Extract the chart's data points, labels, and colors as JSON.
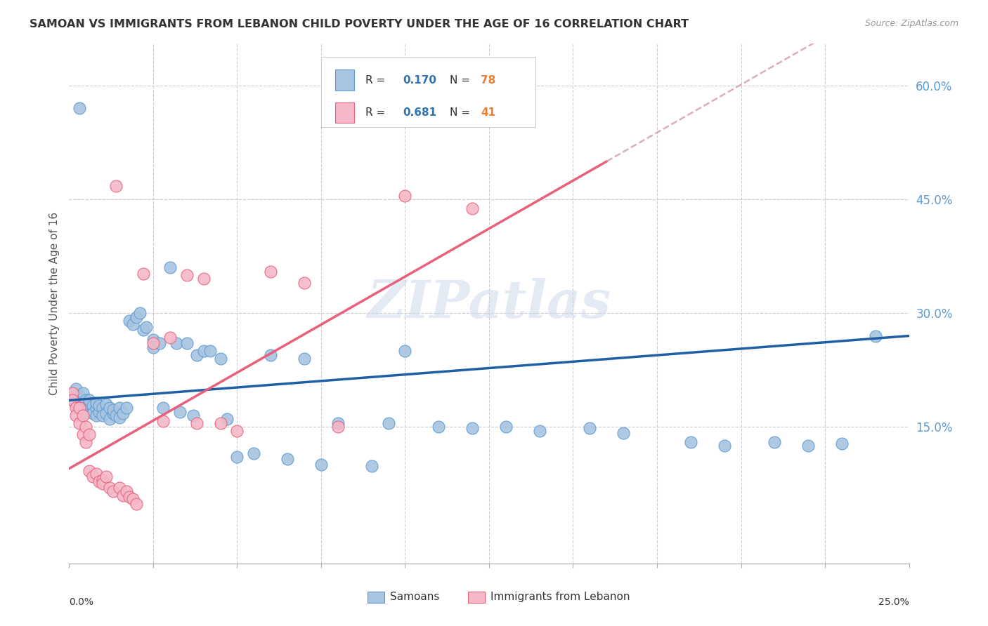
{
  "title": "SAMOAN VS IMMIGRANTS FROM LEBANON CHILD POVERTY UNDER THE AGE OF 16 CORRELATION CHART",
  "source": "Source: ZipAtlas.com",
  "ylabel": "Child Poverty Under the Age of 16",
  "right_yticks": [
    0.0,
    0.15,
    0.3,
    0.45,
    0.6
  ],
  "right_yticklabels": [
    "",
    "15.0%",
    "30.0%",
    "45.0%",
    "60.0%"
  ],
  "xmin": 0.0,
  "xmax": 0.25,
  "ymin": -0.03,
  "ymax": 0.655,
  "samoan_color": "#a8c4e0",
  "samoan_edge_color": "#5b9bd5",
  "lebanon_color": "#f4b8c8",
  "lebanon_edge_color": "#e8607a",
  "samoan_line_color": "#1f5fa6",
  "lebanon_line_color": "#e8607a",
  "lebanon_dash_color": "#d4a0b0",
  "legend_R_color": "#2e75b6",
  "legend_N_color": "#ed7d31",
  "watermark": "ZIPatlas",
  "samoans_x": [
    0.001,
    0.001,
    0.002,
    0.002,
    0.003,
    0.003,
    0.003,
    0.004,
    0.004,
    0.005,
    0.005,
    0.005,
    0.006,
    0.006,
    0.006,
    0.007,
    0.007,
    0.007,
    0.008,
    0.008,
    0.008,
    0.009,
    0.009,
    0.01,
    0.01,
    0.011,
    0.011,
    0.012,
    0.012,
    0.013,
    0.013,
    0.014,
    0.015,
    0.015,
    0.016,
    0.017,
    0.018,
    0.019,
    0.02,
    0.021,
    0.022,
    0.023,
    0.025,
    0.025,
    0.027,
    0.028,
    0.03,
    0.032,
    0.033,
    0.035,
    0.037,
    0.038,
    0.04,
    0.042,
    0.045,
    0.047,
    0.05,
    0.055,
    0.06,
    0.065,
    0.07,
    0.075,
    0.08,
    0.09,
    0.095,
    0.1,
    0.11,
    0.12,
    0.13,
    0.14,
    0.155,
    0.165,
    0.185,
    0.195,
    0.21,
    0.22,
    0.23,
    0.24
  ],
  "samoans_y": [
    0.185,
    0.195,
    0.18,
    0.2,
    0.175,
    0.19,
    0.57,
    0.18,
    0.195,
    0.175,
    0.185,
    0.17,
    0.18,
    0.175,
    0.185,
    0.172,
    0.178,
    0.168,
    0.175,
    0.182,
    0.165,
    0.17,
    0.178,
    0.175,
    0.165,
    0.18,
    0.168,
    0.175,
    0.16,
    0.168,
    0.172,
    0.165,
    0.175,
    0.162,
    0.168,
    0.175,
    0.29,
    0.285,
    0.295,
    0.3,
    0.278,
    0.282,
    0.265,
    0.255,
    0.26,
    0.175,
    0.36,
    0.26,
    0.17,
    0.26,
    0.165,
    0.245,
    0.25,
    0.25,
    0.24,
    0.16,
    0.11,
    0.115,
    0.245,
    0.108,
    0.24,
    0.1,
    0.155,
    0.098,
    0.155,
    0.25,
    0.15,
    0.148,
    0.15,
    0.145,
    0.148,
    0.142,
    0.13,
    0.125,
    0.13,
    0.125,
    0.128,
    0.27
  ],
  "lebanon_x": [
    0.001,
    0.001,
    0.002,
    0.002,
    0.003,
    0.003,
    0.004,
    0.004,
    0.005,
    0.005,
    0.006,
    0.006,
    0.007,
    0.008,
    0.009,
    0.01,
    0.01,
    0.011,
    0.012,
    0.013,
    0.014,
    0.015,
    0.016,
    0.017,
    0.018,
    0.019,
    0.02,
    0.022,
    0.025,
    0.028,
    0.03,
    0.035,
    0.038,
    0.04,
    0.045,
    0.05,
    0.06,
    0.07,
    0.08,
    0.1,
    0.12
  ],
  "lebanon_y": [
    0.195,
    0.185,
    0.175,
    0.165,
    0.175,
    0.155,
    0.165,
    0.14,
    0.15,
    0.13,
    0.14,
    0.092,
    0.085,
    0.088,
    0.078,
    0.08,
    0.075,
    0.085,
    0.07,
    0.065,
    0.468,
    0.07,
    0.06,
    0.065,
    0.058,
    0.055,
    0.048,
    0.352,
    0.26,
    0.158,
    0.268,
    0.35,
    0.155,
    0.345,
    0.155,
    0.145,
    0.355,
    0.34,
    0.15,
    0.455,
    0.438
  ],
  "samoan_line_x": [
    0.0,
    0.25
  ],
  "samoan_line_y": [
    0.185,
    0.27
  ],
  "lebanon_line_x0": 0.0,
  "lebanon_line_x_solid_end": 0.16,
  "lebanon_line_x_dash_end": 0.25,
  "lebanon_line_y0": 0.1,
  "lebanon_line_slope": 3.0
}
